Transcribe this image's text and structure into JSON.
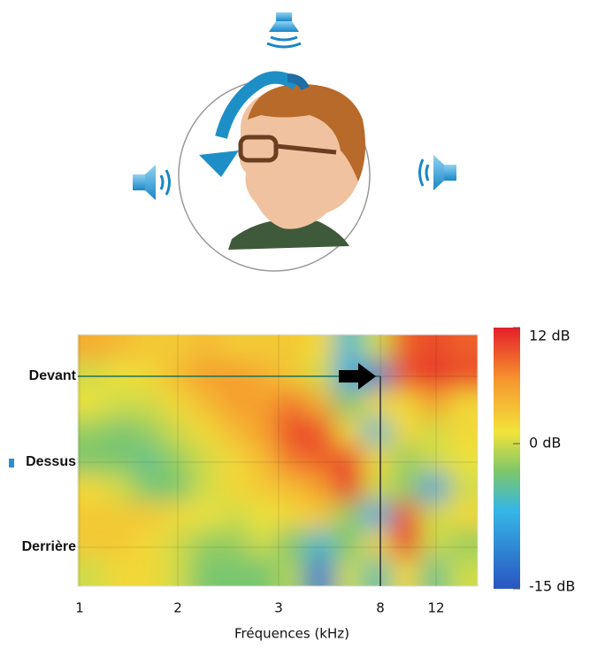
{
  "chart_data": {
    "type": "heatmap",
    "x_label": "Fréquences (kHz)",
    "categories": [
      "1",
      "2",
      "3",
      "8",
      "12"
    ],
    "y_labels": [
      "Devant",
      "Dessus",
      "Derrière"
    ],
    "z": [
      [
        5,
        4,
        3,
        3,
        4,
        3,
        3,
        3,
        2,
        -6,
        0,
        9,
        10,
        9
      ],
      [
        0,
        1,
        2,
        4,
        6,
        6,
        5,
        3,
        0,
        -8,
        -12,
        10,
        11,
        10
      ],
      [
        1,
        0,
        0,
        2,
        4,
        6,
        6,
        8,
        5,
        -3,
        2,
        2,
        6,
        2
      ],
      [
        -2,
        -3,
        -2,
        0,
        2,
        4,
        6,
        10,
        10,
        2,
        -6,
        2,
        0,
        2
      ],
      [
        -3,
        -3,
        -4,
        -2,
        0,
        2,
        4,
        8,
        9,
        10,
        2,
        -2,
        0,
        1
      ],
      [
        2,
        0,
        -3,
        -3,
        0,
        2,
        3,
        4,
        6,
        11,
        0,
        -2,
        -9,
        0
      ],
      [
        3,
        3,
        3,
        2,
        1,
        0,
        1,
        2,
        3,
        -2,
        -8,
        10,
        0,
        2
      ],
      [
        3,
        3,
        2,
        0,
        -2,
        -2,
        0,
        -3,
        -6,
        -3,
        2,
        11,
        0,
        -2
      ],
      [
        0,
        2,
        2,
        0,
        -3,
        -3,
        -3,
        -1,
        -12,
        0,
        -5,
        2,
        -4,
        0
      ]
    ],
    "colorbar": {
      "lim": [
        -15,
        12
      ],
      "ticks": [
        {
          "value": 12,
          "label": "12 dB"
        },
        {
          "value": 0,
          "label": "0 dB"
        },
        {
          "value": -15,
          "label": "-15 dB"
        }
      ]
    }
  }
}
